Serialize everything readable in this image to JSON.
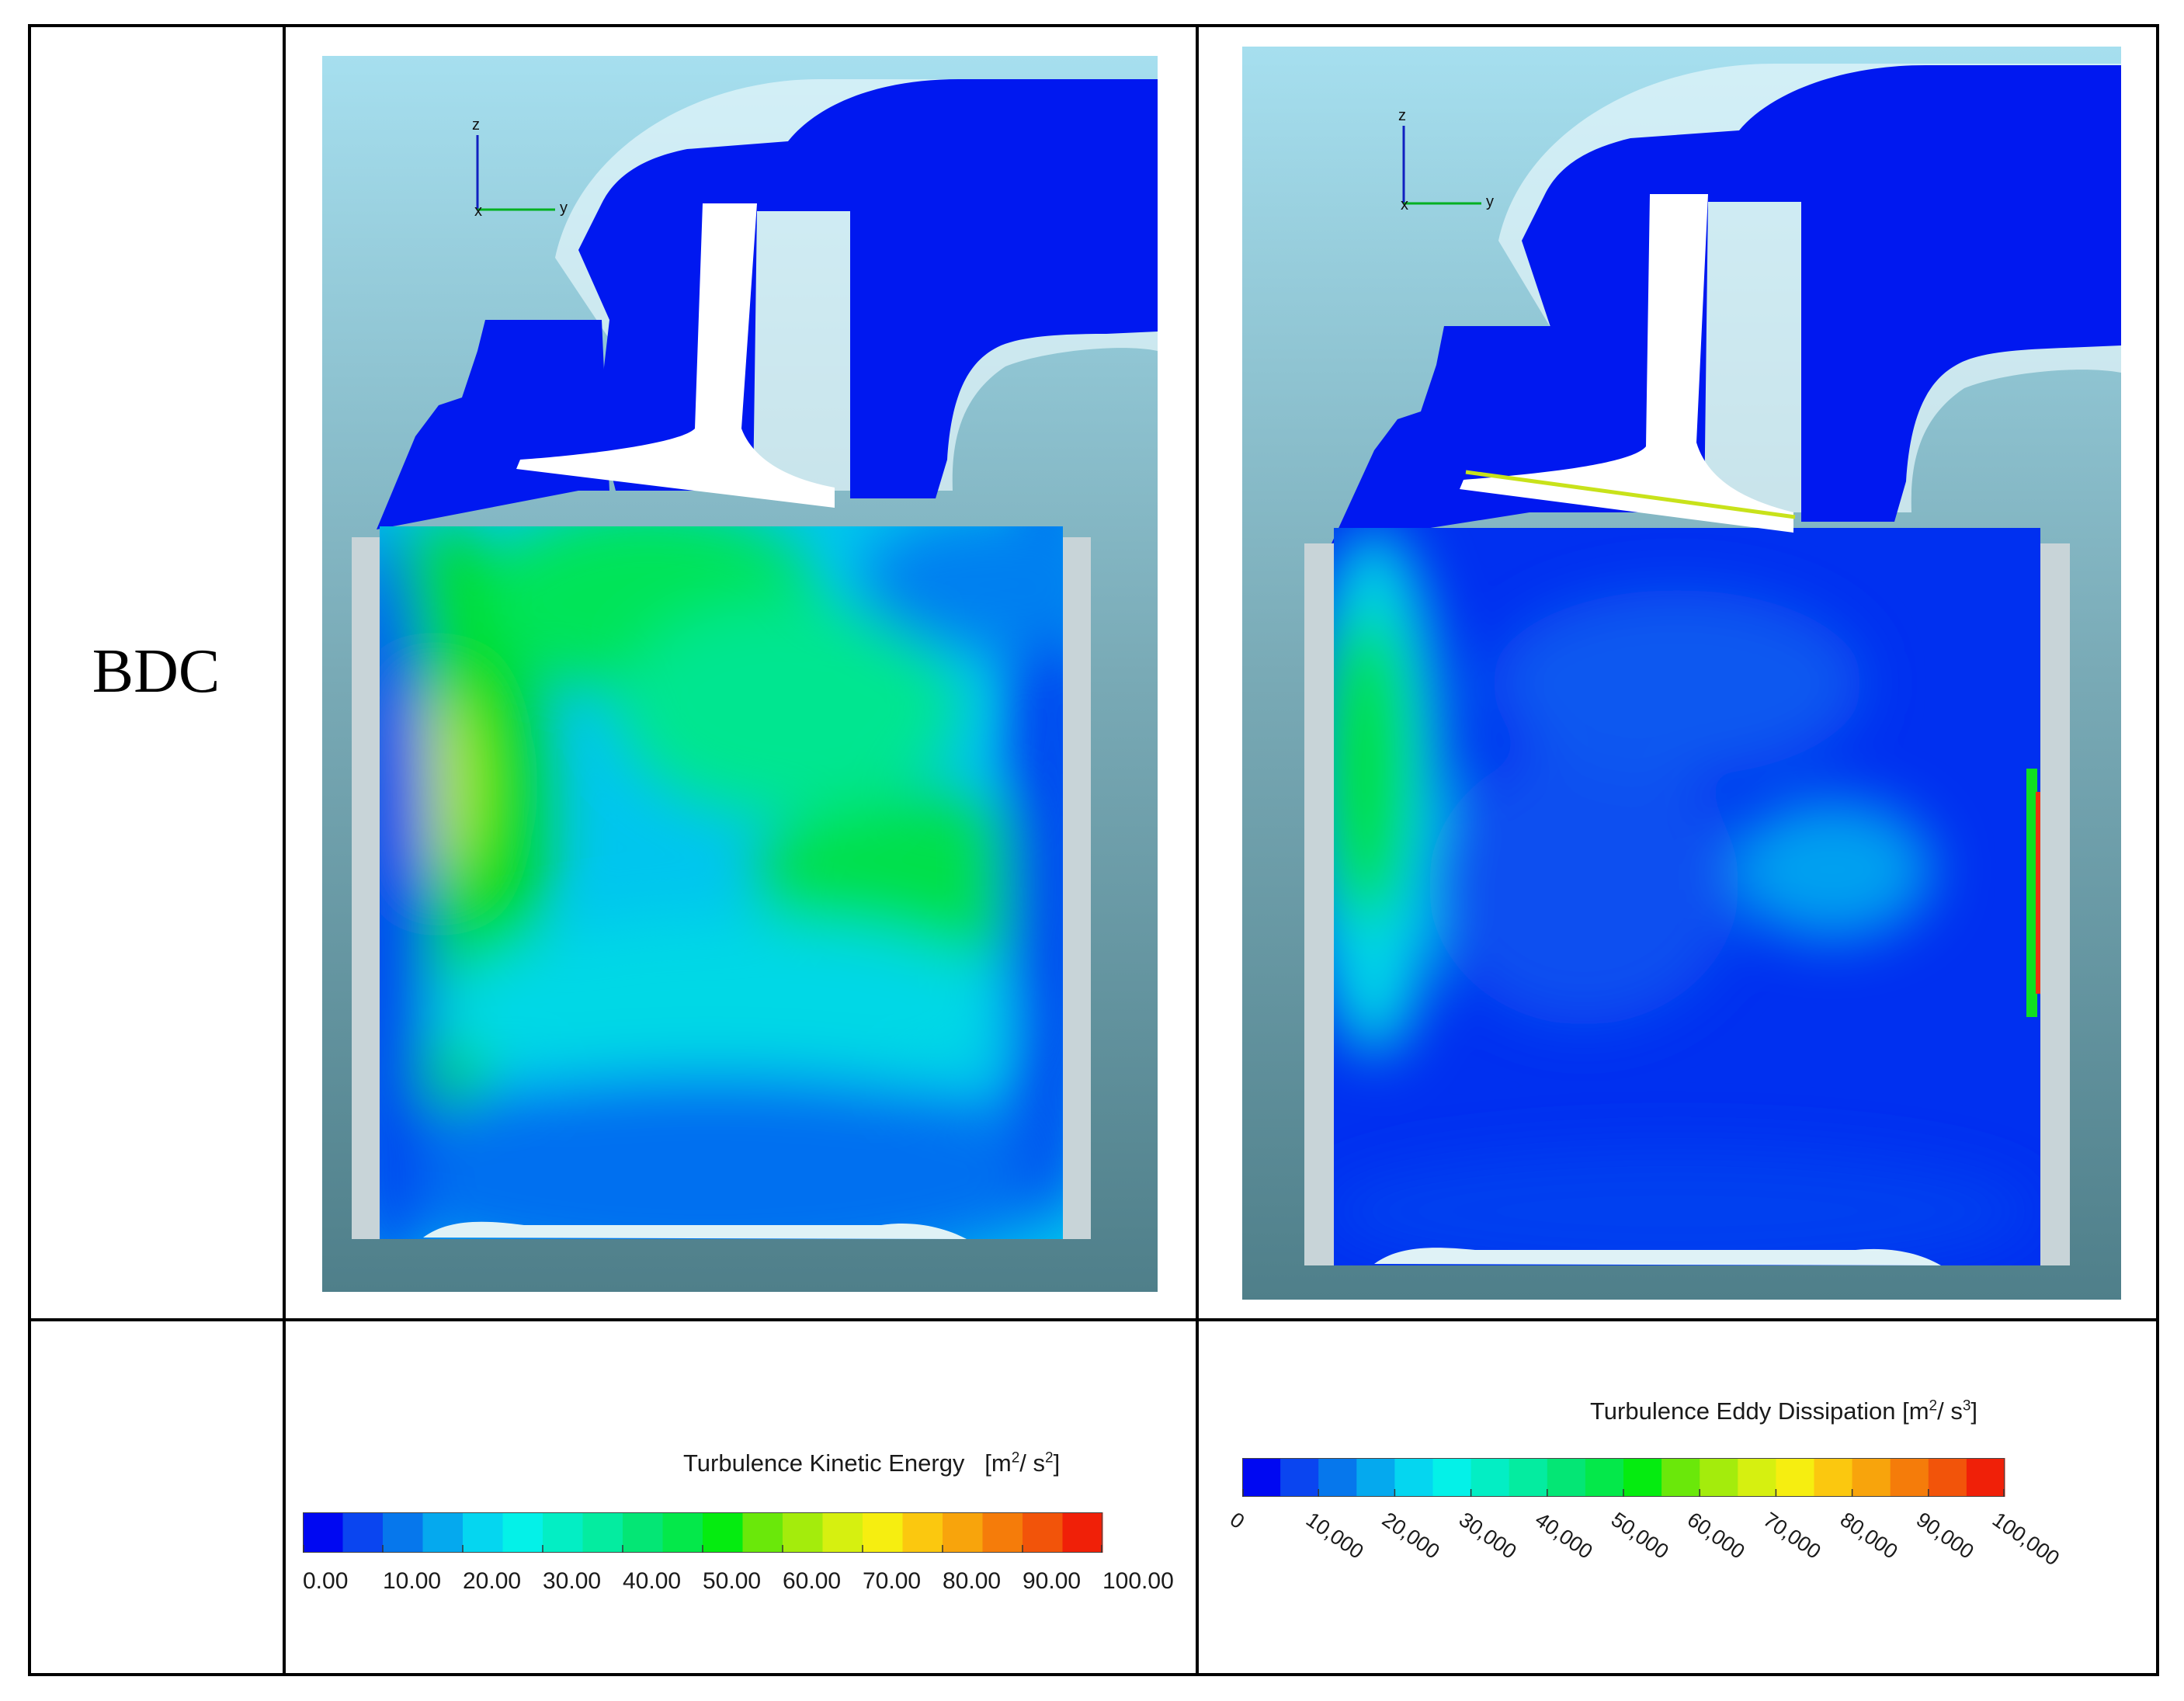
{
  "row_label": "BDC",
  "legend_tke": {
    "title": "Turbulence Kinetic Energy",
    "unit_base": "[m",
    "unit_sup1": "2",
    "unit_mid": "/ s",
    "unit_sup2": "2",
    "unit_end": "]",
    "ticks": [
      "0.00",
      "10.00",
      "20.00",
      "30.00",
      "40.00",
      "50.00",
      "60.00",
      "70.00",
      "80.00",
      "90.00",
      "100.00"
    ],
    "colors": [
      "#0008f2",
      "#0a45f0",
      "#0677ec",
      "#05a9ee",
      "#05d6f0",
      "#04f1e8",
      "#03eec4",
      "#04eca0",
      "#04e675",
      "#04e84a",
      "#05ec10",
      "#6ae80a",
      "#a4ec0c",
      "#d6f010",
      "#f6ee10",
      "#fbc80f",
      "#f8a40c",
      "#f57c0a",
      "#f2540a",
      "#f02008"
    ]
  },
  "legend_ted": {
    "title": "Turbulence Eddy Dissipation",
    "unit_base": "[m",
    "unit_sup1": "2",
    "unit_mid": "/ s",
    "unit_sup2": "3",
    "unit_end": "]",
    "ticks": [
      "0",
      "10,000",
      "20,000",
      "30,000",
      "40,000",
      "50,000",
      "60,000",
      "70,000",
      "80,000",
      "90,000",
      "100,000"
    ],
    "colors": [
      "#0008f2",
      "#0a45f0",
      "#0677ec",
      "#05a9ee",
      "#05d6f0",
      "#04f1e8",
      "#03eec4",
      "#04eca0",
      "#04e675",
      "#04e84a",
      "#05ec10",
      "#6ae80a",
      "#a4ec0c",
      "#d6f010",
      "#f6ee10",
      "#fbc80f",
      "#f8a40c",
      "#f57c0a",
      "#f2540a",
      "#f02008"
    ]
  },
  "axis": {
    "z": "z",
    "x": "x",
    "y": "y"
  },
  "colors": {
    "background_top": "#a6dfef",
    "background_bottom": "#4f7f8a",
    "low": "#0018f0",
    "mid": "#00e8e0",
    "high": "#00e00a"
  }
}
